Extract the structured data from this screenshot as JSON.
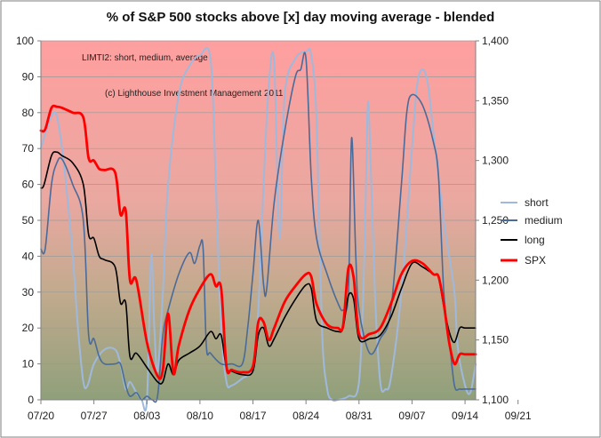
{
  "chart_data": {
    "type": "line",
    "title": "% of S&P 500 stocks above [x] day moving average - blended",
    "annotations": [
      "LIMTI2: short, medium,  average",
      "(c) Lighthouse Investment Management 2011"
    ],
    "x_ticks": [
      "07/20",
      "07/27",
      "08/03",
      "08/10",
      "08/17",
      "08/24",
      "08/31",
      "09/07",
      "09/14",
      "09/21"
    ],
    "y_left": {
      "ylim": [
        0,
        100
      ],
      "ticks": [
        "0",
        "10",
        "20",
        "30",
        "40",
        "50",
        "60",
        "70",
        "80",
        "90",
        "100"
      ]
    },
    "y_right": {
      "ylim": [
        1100,
        1400
      ],
      "ticks": [
        "1,100",
        "1,150",
        "1,200",
        "1,250",
        "1,300",
        "1,350",
        "1,400"
      ]
    },
    "legend_position": "right",
    "colors": {
      "short": "#9fb9dc",
      "medium": "#4a6b9a",
      "long": "#000000",
      "SPX": "#ff0000"
    },
    "series": [
      {
        "name": "short",
        "axis": "left",
        "points": [
          [
            0,
            70
          ],
          [
            0.5,
            75
          ],
          [
            1,
            79
          ],
          [
            1.5,
            79
          ],
          [
            2.2,
            65
          ],
          [
            3,
            40
          ],
          [
            3.5,
            20
          ],
          [
            4,
            5
          ],
          [
            4.4,
            4
          ],
          [
            5,
            10
          ],
          [
            6,
            14
          ],
          [
            7,
            14
          ],
          [
            7.5,
            10
          ],
          [
            8,
            3
          ],
          [
            8.4,
            5
          ],
          [
            9,
            2
          ],
          [
            9.5,
            0
          ],
          [
            10,
            0
          ],
          [
            10.4,
            40
          ],
          [
            10.7,
            20
          ],
          [
            11,
            8
          ],
          [
            11.5,
            30
          ],
          [
            12,
            60
          ],
          [
            13,
            85
          ],
          [
            14,
            93
          ],
          [
            15,
            96
          ],
          [
            16,
            95
          ],
          [
            16.5,
            60
          ],
          [
            17,
            20
          ],
          [
            17.5,
            5
          ],
          [
            18,
            4
          ],
          [
            19,
            6
          ],
          [
            20,
            9
          ],
          [
            20.5,
            25
          ],
          [
            21,
            60
          ],
          [
            21.5,
            88
          ],
          [
            22,
            94
          ],
          [
            22.5,
            45
          ],
          [
            23,
            85
          ],
          [
            24,
            95
          ],
          [
            25,
            97
          ],
          [
            25.5,
            96
          ],
          [
            26,
            78
          ],
          [
            26.5,
            20
          ],
          [
            27,
            3
          ],
          [
            27.5,
            0
          ],
          [
            28,
            0
          ],
          [
            29,
            1
          ],
          [
            30,
            5
          ],
          [
            30.5,
            40
          ],
          [
            30.8,
            80
          ],
          [
            31,
            75
          ],
          [
            31.5,
            30
          ],
          [
            32,
            5
          ],
          [
            32.5,
            3
          ],
          [
            33,
            6
          ],
          [
            34,
            30
          ],
          [
            35,
            70
          ],
          [
            35.5,
            88
          ],
          [
            36,
            92
          ],
          [
            36.5,
            88
          ],
          [
            37,
            75
          ],
          [
            38,
            50
          ],
          [
            39,
            30
          ],
          [
            39.3,
            15
          ],
          [
            40,
            4
          ],
          [
            40.5,
            2
          ],
          [
            41,
            10
          ]
        ]
      },
      {
        "name": "medium",
        "axis": "left",
        "points": [
          [
            0,
            42
          ],
          [
            0.4,
            42
          ],
          [
            1,
            60
          ],
          [
            1.5,
            66
          ],
          [
            2,
            67
          ],
          [
            3,
            60
          ],
          [
            4,
            50
          ],
          [
            4.5,
            18
          ],
          [
            5,
            17
          ],
          [
            5.5,
            12
          ],
          [
            6,
            10
          ],
          [
            7,
            10
          ],
          [
            7.5,
            10
          ],
          [
            8,
            4
          ],
          [
            8.4,
            1
          ],
          [
            9,
            2
          ],
          [
            9.5,
            0
          ],
          [
            10,
            1
          ],
          [
            10.5,
            0
          ],
          [
            11,
            1
          ],
          [
            11.5,
            18
          ],
          [
            12,
            25
          ],
          [
            13,
            35
          ],
          [
            14,
            41
          ],
          [
            14.5,
            38
          ],
          [
            15,
            43
          ],
          [
            15.3,
            42
          ],
          [
            15.6,
            15
          ],
          [
            16,
            13
          ],
          [
            17,
            10
          ],
          [
            18,
            10
          ],
          [
            19,
            10
          ],
          [
            19.5,
            20
          ],
          [
            20,
            35
          ],
          [
            20.5,
            50
          ],
          [
            21,
            32
          ],
          [
            21.3,
            31
          ],
          [
            22,
            55
          ],
          [
            23,
            75
          ],
          [
            24,
            90
          ],
          [
            24.5,
            92
          ],
          [
            25,
            95
          ],
          [
            25.5,
            62
          ],
          [
            26,
            45
          ],
          [
            27,
            35
          ],
          [
            28,
            27
          ],
          [
            28.5,
            25
          ],
          [
            29,
            30
          ],
          [
            29.3,
            73
          ],
          [
            29.7,
            40
          ],
          [
            30,
            25
          ],
          [
            31,
            13
          ],
          [
            32,
            17
          ],
          [
            33,
            25
          ],
          [
            34,
            60
          ],
          [
            34.5,
            80
          ],
          [
            35,
            85
          ],
          [
            36,
            82
          ],
          [
            37,
            72
          ],
          [
            37.5,
            62
          ],
          [
            38,
            30
          ],
          [
            38.5,
            17
          ],
          [
            39,
            4
          ],
          [
            39.5,
            3
          ],
          [
            40,
            3
          ],
          [
            41,
            3
          ]
        ]
      },
      {
        "name": "long",
        "axis": "left",
        "points": [
          [
            0,
            59
          ],
          [
            0.3,
            60
          ],
          [
            1,
            68
          ],
          [
            1.5,
            69
          ],
          [
            2,
            68
          ],
          [
            3,
            66
          ],
          [
            4,
            60
          ],
          [
            4.5,
            46
          ],
          [
            5,
            45
          ],
          [
            5.5,
            40
          ],
          [
            6,
            39
          ],
          [
            7,
            37
          ],
          [
            7.5,
            27
          ],
          [
            8,
            27
          ],
          [
            8.4,
            12
          ],
          [
            9,
            13
          ],
          [
            10,
            9
          ],
          [
            11,
            5
          ],
          [
            11.5,
            5
          ],
          [
            12,
            10
          ],
          [
            12.5,
            7
          ],
          [
            13,
            11
          ],
          [
            14,
            13
          ],
          [
            15,
            15
          ],
          [
            16,
            19
          ],
          [
            16.5,
            17
          ],
          [
            17,
            18
          ],
          [
            17.5,
            9
          ],
          [
            18,
            8
          ],
          [
            19,
            7
          ],
          [
            20,
            8
          ],
          [
            20.5,
            18
          ],
          [
            21,
            20
          ],
          [
            21.5,
            15
          ],
          [
            22,
            17
          ],
          [
            23,
            23
          ],
          [
            24,
            28
          ],
          [
            25,
            32
          ],
          [
            25.5,
            31
          ],
          [
            26,
            22
          ],
          [
            27,
            20
          ],
          [
            28,
            19
          ],
          [
            28.5,
            20
          ],
          [
            29,
            29
          ],
          [
            29.5,
            28
          ],
          [
            30,
            17
          ],
          [
            31,
            17
          ],
          [
            32,
            18
          ],
          [
            33,
            23
          ],
          [
            34,
            31
          ],
          [
            35,
            38
          ],
          [
            36,
            37
          ],
          [
            37,
            35
          ],
          [
            37.5,
            34
          ],
          [
            38,
            26
          ],
          [
            38.5,
            19
          ],
          [
            39,
            16
          ],
          [
            39.5,
            20
          ],
          [
            40,
            20
          ],
          [
            41,
            20
          ]
        ]
      },
      {
        "name": "SPX",
        "axis": "right",
        "points": [
          [
            0,
            1325
          ],
          [
            0.4,
            1326
          ],
          [
            1,
            1344
          ],
          [
            1.5,
            1345
          ],
          [
            2,
            1344
          ],
          [
            3,
            1340
          ],
          [
            4,
            1336
          ],
          [
            4.5,
            1302
          ],
          [
            5,
            1300
          ],
          [
            5.5,
            1293
          ],
          [
            6,
            1292
          ],
          [
            7,
            1290
          ],
          [
            7.5,
            1255
          ],
          [
            8,
            1258
          ],
          [
            8.4,
            1200
          ],
          [
            9,
            1200
          ],
          [
            10,
            1148
          ],
          [
            11,
            1120
          ],
          [
            11.5,
            1125
          ],
          [
            12,
            1172
          ],
          [
            12.5,
            1122
          ],
          [
            13,
            1145
          ],
          [
            14,
            1175
          ],
          [
            15,
            1193
          ],
          [
            16,
            1205
          ],
          [
            16.5,
            1195
          ],
          [
            17,
            1193
          ],
          [
            17.5,
            1128
          ],
          [
            18,
            1125
          ],
          [
            19,
            1123
          ],
          [
            20,
            1128
          ],
          [
            20.5,
            1165
          ],
          [
            21,
            1165
          ],
          [
            21.5,
            1150
          ],
          [
            22,
            1160
          ],
          [
            23,
            1182
          ],
          [
            24,
            1195
          ],
          [
            25,
            1205
          ],
          [
            25.5,
            1203
          ],
          [
            26,
            1180
          ],
          [
            27,
            1163
          ],
          [
            28,
            1160
          ],
          [
            28.5,
            1162
          ],
          [
            29,
            1210
          ],
          [
            29.5,
            1202
          ],
          [
            30,
            1155
          ],
          [
            31,
            1155
          ],
          [
            32,
            1160
          ],
          [
            33,
            1180
          ],
          [
            34,
            1205
          ],
          [
            35,
            1216
          ],
          [
            36,
            1214
          ],
          [
            37,
            1205
          ],
          [
            37.5,
            1203
          ],
          [
            38,
            1180
          ],
          [
            38.5,
            1148
          ],
          [
            39,
            1130
          ],
          [
            39.5,
            1138
          ],
          [
            40,
            1138
          ],
          [
            41,
            1138
          ]
        ]
      }
    ]
  }
}
